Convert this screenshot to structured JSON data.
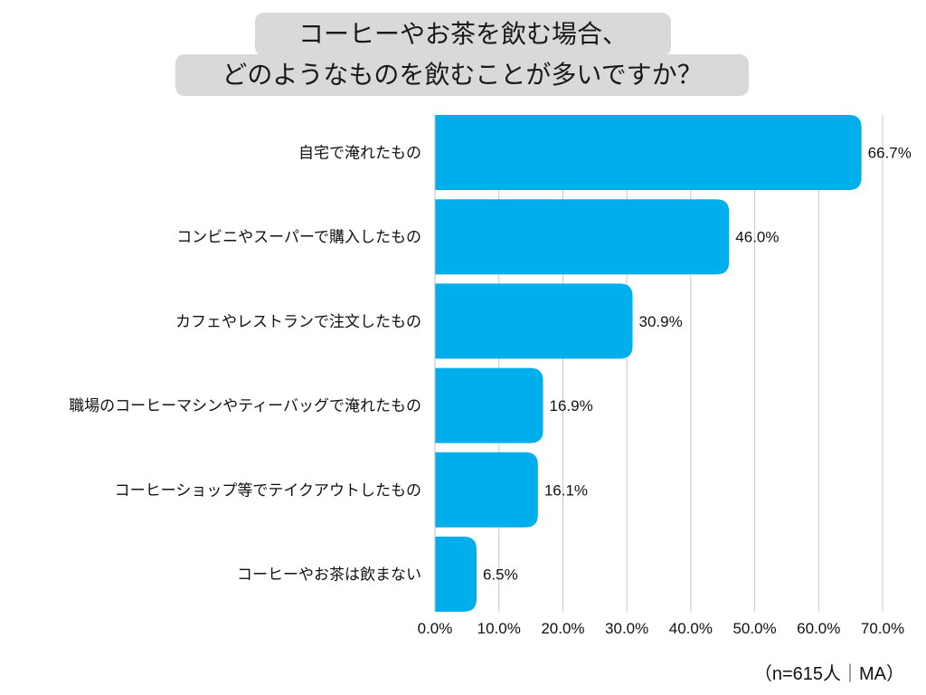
{
  "title": {
    "line1": "コーヒーやお茶を飲む場合、",
    "line2": "どのようなものを飲むことが多いですか？"
  },
  "note": "（n=615人｜MA）",
  "colors": {
    "bar": "#00aeec",
    "grid": "#c8c8c8",
    "title_bg": "#d9d9d9"
  },
  "chart_data": {
    "type": "bar",
    "orientation": "horizontal",
    "title": "コーヒーやお茶を飲む場合、どのようなものを飲むことが多いですか？",
    "categories": [
      "自宅で淹れたもの",
      "コンビニやスーパーで購入したもの",
      "カフェやレストランで注文したもの",
      "職場のコーヒーマシンやティーバッグで淹れたもの",
      "コーヒーショップ等でテイクアウトしたもの",
      "コーヒーやお茶は飲まない"
    ],
    "values": [
      66.7,
      46.0,
      30.9,
      16.9,
      16.1,
      6.5
    ],
    "value_labels": [
      "66.7%",
      "46.0%",
      "30.9%",
      "16.9%",
      "16.1%",
      "6.5%"
    ],
    "xticks": [
      "0.0%",
      "10.0%",
      "20.0%",
      "30.0%",
      "40.0%",
      "50.0%",
      "60.0%",
      "70.0%"
    ],
    "xlim": [
      0,
      70
    ],
    "grid": true,
    "xlabel": "",
    "ylabel": ""
  }
}
